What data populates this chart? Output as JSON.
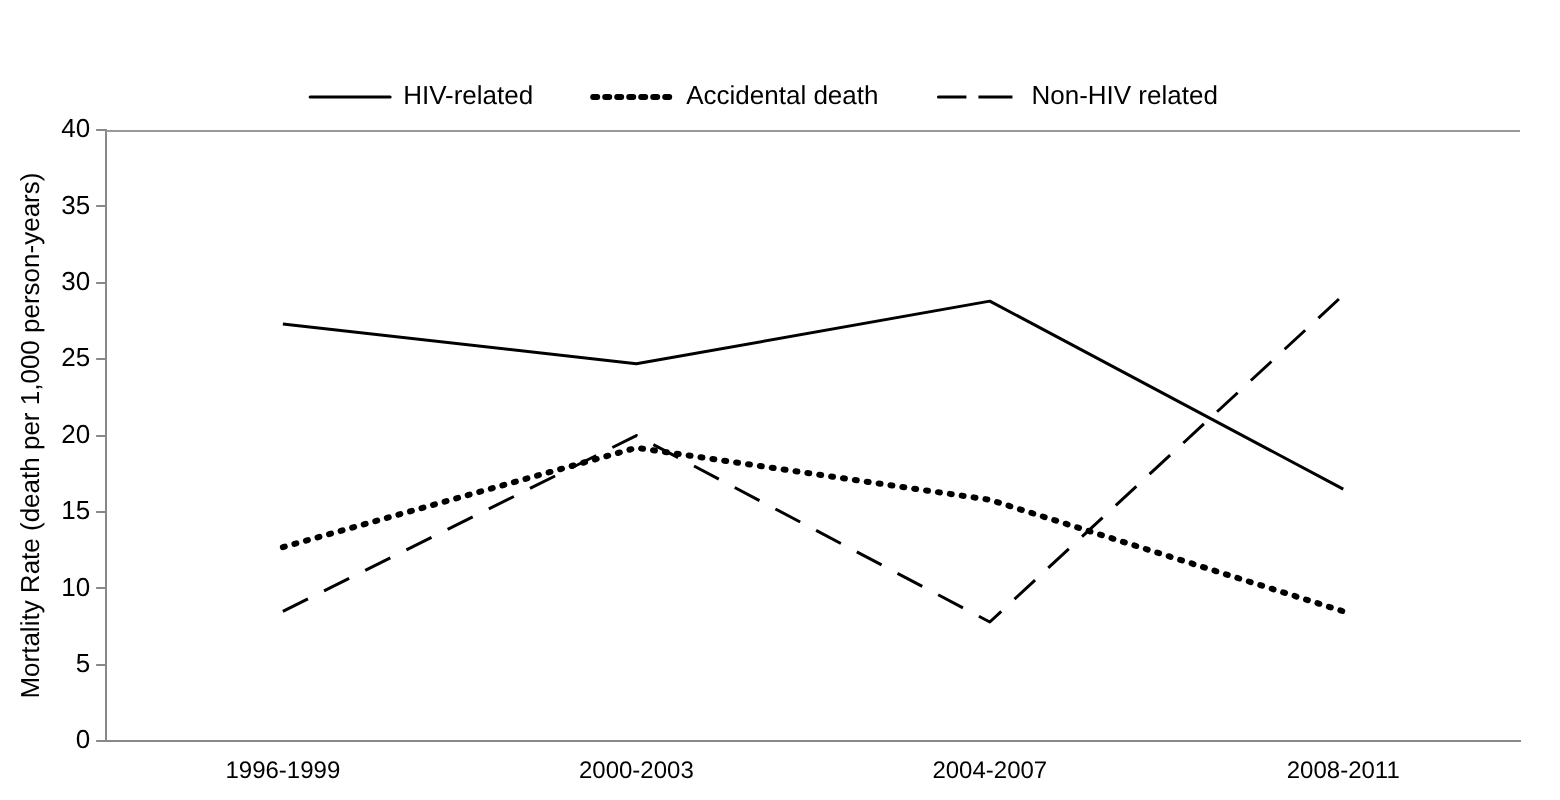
{
  "chart_data": {
    "type": "line",
    "ylabel": "Mortality Rate (death per 1,000 person-years)",
    "categories": [
      "1996-1999",
      "2000-2003",
      "2004-2007",
      "2008-2011"
    ],
    "series": [
      {
        "name": "HIV-related",
        "color": "#000000",
        "line_style": "solid",
        "values": [
          27.3,
          24.7,
          28.8,
          16.5
        ]
      },
      {
        "name": "Accidental death",
        "color": "#000000",
        "line_style": "dotted",
        "values": [
          12.7,
          19.2,
          15.8,
          8.5
        ]
      },
      {
        "name": "Non-HIV related",
        "color": "#000000",
        "line_style": "dashed",
        "values": [
          8.5,
          20,
          7.8,
          29.2
        ]
      }
    ],
    "ylim": [
      0,
      40
    ],
    "yticks": [
      0,
      5,
      10,
      15,
      20,
      25,
      30,
      35,
      40
    ],
    "grid": false,
    "legend": "top",
    "marker": "none"
  }
}
